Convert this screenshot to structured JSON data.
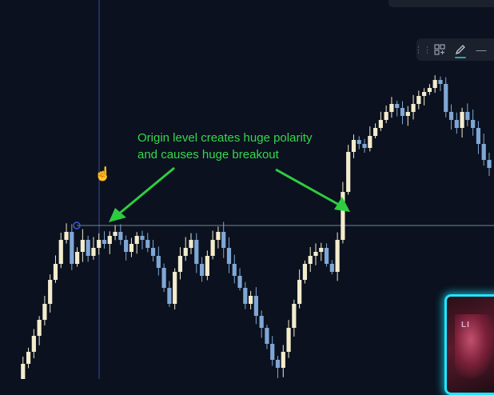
{
  "annotation": {
    "line1": "Origin level creates huge polarity",
    "line2": "and causes huge breakout"
  },
  "toolbar": {
    "grip_icon": "drag-handle-icon",
    "widgets_icon": "add-widget-icon",
    "pencil_icon": "pencil-icon",
    "line_icon": "horizontal-line-icon"
  },
  "webcam": {
    "overlay_text": "LI"
  },
  "colors": {
    "background": "#0b111e",
    "bull_candle": "#f3eccd",
    "bear_candle": "#7fa7d6",
    "level_line": "#8fb0c2",
    "vertical_line": "#3e4aa2",
    "annotation": "#35d84d",
    "webcam_border": "#1fe6ff"
  }
}
